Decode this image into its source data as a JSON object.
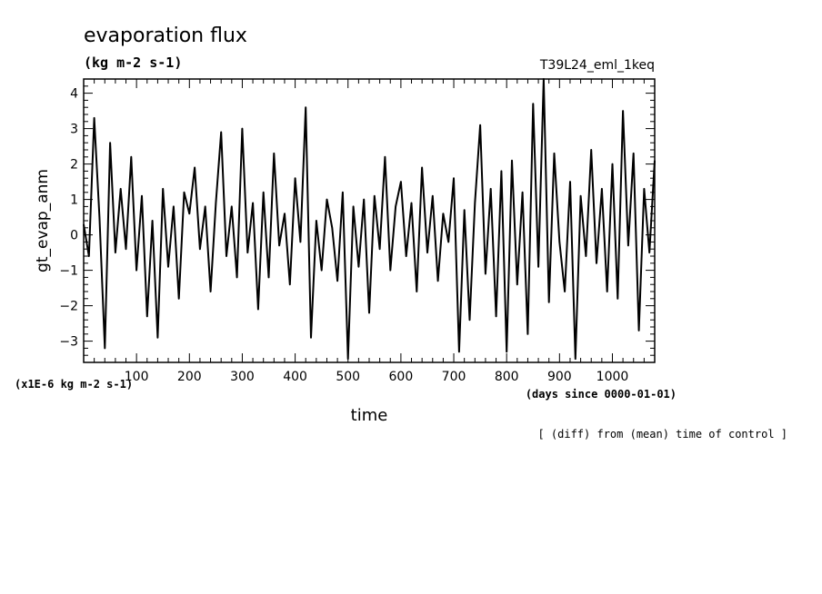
{
  "chart_data": {
    "type": "line",
    "title": "evaporation flux",
    "subtitle": "(kg m-2 s-1)",
    "run_label": "T39L24_eml_1keq",
    "xlabel": "time",
    "xunit": "(days since 0000-01-01)",
    "ylabel": "gt_evap_anm",
    "yunit": "(x1E-6 kg m-2 s-1)",
    "footer": "[ (diff) from (mean) time of control ]",
    "xlim": [
      0,
      1080
    ],
    "ylim": [
      -3.6,
      4.4
    ],
    "x_ticks": [
      100,
      200,
      300,
      400,
      500,
      600,
      700,
      800,
      900,
      1000
    ],
    "y_ticks": [
      -3,
      -2,
      -1,
      0,
      1,
      2,
      3,
      4
    ],
    "grid": false,
    "line_color": "#000000",
    "series": [
      {
        "x": [
          0,
          10,
          20,
          30,
          40,
          50,
          60,
          70,
          80,
          90,
          100,
          110,
          120,
          130,
          140,
          150,
          160,
          170,
          180,
          190,
          200,
          210,
          220,
          230,
          240,
          250,
          260,
          270,
          280,
          290,
          300,
          310,
          320,
          330,
          340,
          350,
          360,
          370,
          380,
          390,
          400,
          410,
          420,
          430,
          440,
          450,
          460,
          470,
          480,
          490,
          500,
          510,
          520,
          530,
          540,
          550,
          560,
          570,
          580,
          590,
          600,
          610,
          620,
          630,
          640,
          650,
          660,
          670,
          680,
          690,
          700,
          710,
          720,
          730,
          740,
          750,
          760,
          770,
          780,
          790,
          800,
          810,
          820,
          830,
          840,
          850,
          860,
          870,
          880,
          890,
          900,
          910,
          920,
          930,
          940,
          950,
          960,
          970,
          980,
          990,
          1000,
          1010,
          1020,
          1030,
          1040,
          1050,
          1060,
          1070,
          1080
        ],
        "values": [
          0.3,
          -0.6,
          3.3,
          0.5,
          -3.2,
          2.6,
          -0.5,
          1.3,
          -0.4,
          2.2,
          -1.0,
          1.1,
          -2.3,
          0.4,
          -2.9,
          1.3,
          -0.9,
          0.8,
          -1.8,
          1.2,
          0.6,
          1.9,
          -0.4,
          0.8,
          -1.6,
          0.9,
          2.9,
          -0.6,
          0.8,
          -1.2,
          3.0,
          -0.5,
          0.9,
          -2.1,
          1.2,
          -1.2,
          2.3,
          -0.3,
          0.6,
          -1.4,
          1.6,
          -0.2,
          3.6,
          -2.9,
          0.4,
          -1.0,
          1.0,
          0.2,
          -1.3,
          1.2,
          -3.5,
          0.8,
          -0.9,
          1.0,
          -2.2,
          1.1,
          -0.4,
          2.2,
          -1.0,
          0.8,
          1.5,
          -0.6,
          0.9,
          -1.6,
          1.9,
          -0.5,
          1.1,
          -1.3,
          0.6,
          -0.2,
          1.6,
          -3.3,
          0.7,
          -2.4,
          0.9,
          3.1,
          -1.1,
          1.3,
          -2.3,
          1.8,
          -3.3,
          2.1,
          -1.4,
          1.2,
          -2.8,
          3.7,
          -0.9,
          4.4,
          -1.9,
          2.3,
          -0.2,
          -1.6,
          1.5,
          -3.5,
          1.1,
          -0.6,
          2.4,
          -0.8,
          1.3,
          -1.6,
          2.0,
          -1.8,
          3.5,
          -0.3,
          2.3,
          -2.7,
          1.3,
          -0.5,
          2.1
        ]
      }
    ]
  }
}
